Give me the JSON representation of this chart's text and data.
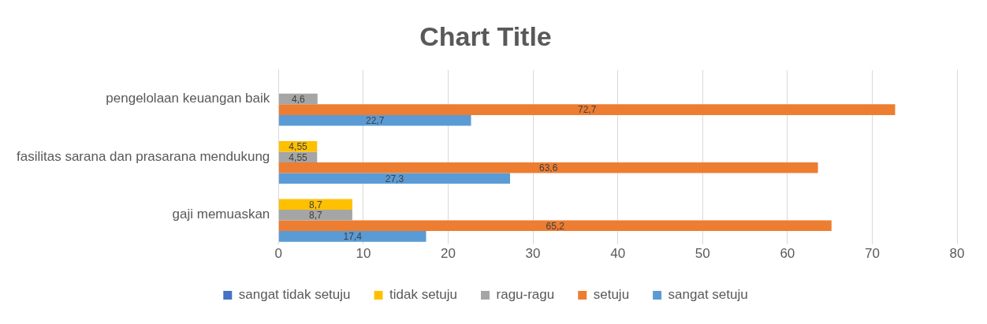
{
  "chart_data": {
    "type": "bar",
    "orientation": "horizontal",
    "title": "Chart Title",
    "categories": [
      "pengelolaan keuangan baik",
      "fasilitas sarana dan prasarana mendukung",
      "gaji memuaskan"
    ],
    "series": [
      {
        "name": "sangat tidak setuju",
        "color": "#4472c4",
        "values": [
          null,
          null,
          null
        ],
        "value_labels": [
          null,
          null,
          null
        ]
      },
      {
        "name": "tidak setuju",
        "color": "#ffc000",
        "values": [
          null,
          4.55,
          8.7
        ],
        "value_labels": [
          null,
          "4,55",
          "8,7"
        ]
      },
      {
        "name": "ragu-ragu",
        "color": "#a5a5a5",
        "values": [
          4.6,
          4.55,
          8.7
        ],
        "value_labels": [
          "4,6",
          "4,55",
          "8,7"
        ]
      },
      {
        "name": "setuju",
        "color": "#ed7d31",
        "values": [
          72.7,
          63.6,
          65.2
        ],
        "value_labels": [
          "72,7",
          "63,6",
          "65,2"
        ]
      },
      {
        "name": "sangat setuju",
        "color": "#5b9bd5",
        "values": [
          22.7,
          27.3,
          17.4
        ],
        "value_labels": [
          "22,7",
          "27,3",
          "17,4"
        ]
      }
    ],
    "xlim": [
      0,
      80
    ],
    "xticks": [
      0,
      10,
      20,
      30,
      40,
      50,
      60,
      70,
      80
    ],
    "grid": "x",
    "legend": "bottom"
  }
}
